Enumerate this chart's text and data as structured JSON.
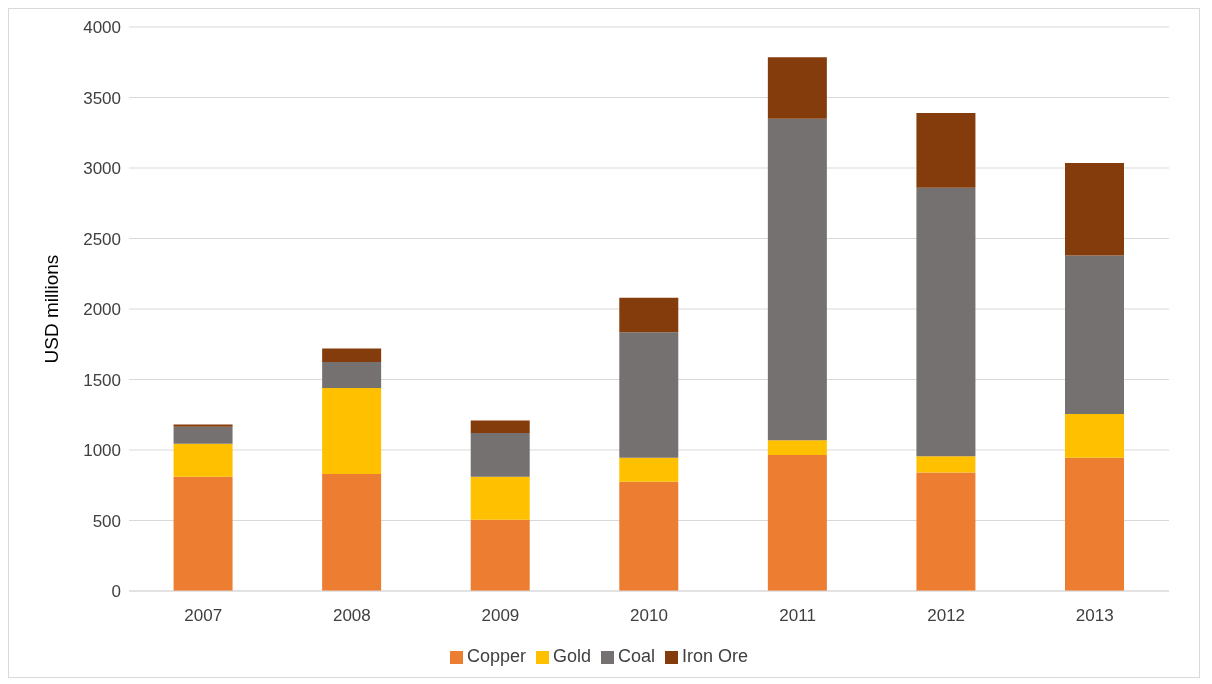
{
  "chart_data": {
    "type": "bar",
    "stacked": true,
    "ylabel": "USD millions",
    "categories": [
      "2007",
      "2008",
      "2009",
      "2010",
      "2011",
      "2012",
      "2013"
    ],
    "series": [
      {
        "name": "Copper",
        "color": "#ed7d31",
        "values": [
          810,
          830,
          505,
          775,
          965,
          840,
          945
        ]
      },
      {
        "name": "Gold",
        "color": "#ffc000",
        "values": [
          235,
          610,
          305,
          170,
          105,
          115,
          310
        ]
      },
      {
        "name": "Coal",
        "color": "#767171",
        "values": [
          120,
          185,
          310,
          890,
          2280,
          1905,
          1125
        ]
      },
      {
        "name": "Iron Ore",
        "color": "#843c0c",
        "values": [
          15,
          95,
          90,
          245,
          435,
          530,
          655
        ]
      }
    ],
    "ylim": [
      0,
      4000
    ],
    "yticks": [
      0,
      500,
      1000,
      1500,
      2000,
      2500,
      3000,
      3500,
      4000
    ],
    "grid": "y",
    "legend": "bottom"
  }
}
